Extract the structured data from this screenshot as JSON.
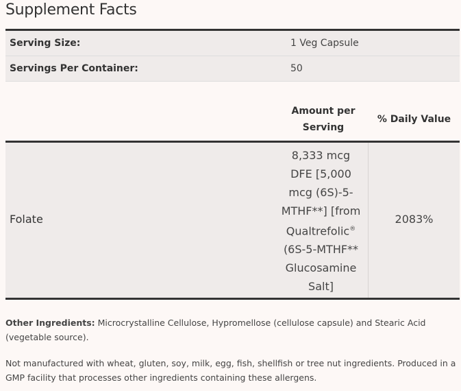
{
  "title": "Supplement Facts",
  "serving": [
    {
      "label": "Serving Size:",
      "value": "1 Veg Capsule"
    },
    {
      "label": "Servings Per Container:",
      "value": "50"
    }
  ],
  "headers": {
    "amount": "Amount per Serving",
    "daily_value": "% Daily Value"
  },
  "nutrients": [
    {
      "name": "Folate",
      "amount_lines": [
        "8,333 mcg",
        "DFE [5,000",
        "mcg (6S)-5-",
        "MTHF**] [from",
        "Qualtrefolic",
        "(6S-5-MTHF**",
        "Glucosamine",
        "Salt]"
      ],
      "registered_mark": "®",
      "daily_value": "2083%"
    }
  ],
  "other_ingredients": {
    "label": "Other Ingredients:",
    "text": " Microcrystalline Cellulose, Hypromellose (cellulose capsule) and Stearic Acid (vegetable source)."
  },
  "allergen_note": "Not manufactured with wheat, gluten, soy, milk, egg, fish, shellfish or tree nut ingredients. Produced in a GMP facility that processes other ingredients containing these allergens."
}
